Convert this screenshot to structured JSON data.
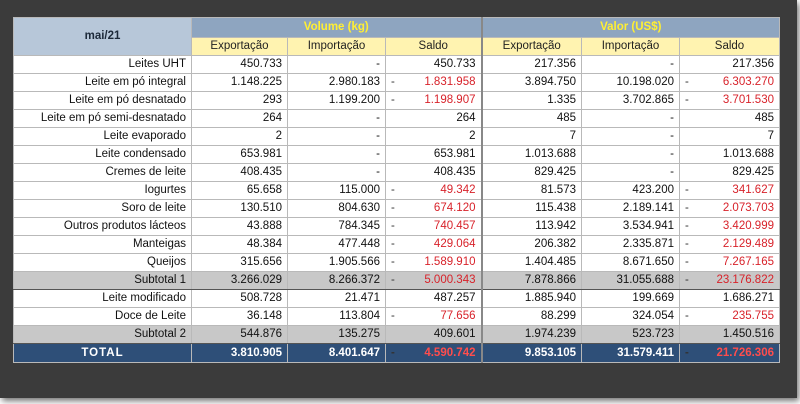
{
  "period": "mai/21",
  "groups": {
    "volume": "Volume (kg)",
    "valor": "Valor (US$)"
  },
  "subheaders": [
    "Exportação",
    "Importação",
    "Saldo",
    "Exportação",
    "Importação",
    "Saldo"
  ],
  "rows": [
    {
      "label": "Leites UHT",
      "vexp": "450.733",
      "vimp": "-",
      "vsal": "450.733",
      "vsal_neg": false,
      "$exp": "217.356",
      "$imp": "-",
      "$sal": "217.356",
      "$sal_neg": false
    },
    {
      "label": "Leite em pó integral",
      "vexp": "1.148.225",
      "vimp": "2.980.183",
      "vsal": "1.831.958",
      "vsal_neg": true,
      "$exp": "3.894.750",
      "$imp": "10.198.020",
      "$sal": "6.303.270",
      "$sal_neg": true
    },
    {
      "label": "Leite em pó desnatado",
      "vexp": "293",
      "vimp": "1.199.200",
      "vsal": "1.198.907",
      "vsal_neg": true,
      "$exp": "1.335",
      "$imp": "3.702.865",
      "$sal": "3.701.530",
      "$sal_neg": true
    },
    {
      "label": "Leite em pó semi-desnatado",
      "vexp": "264",
      "vimp": "-",
      "vsal": "264",
      "vsal_neg": false,
      "$exp": "485",
      "$imp": "-",
      "$sal": "485",
      "$sal_neg": false
    },
    {
      "label": "Leite evaporado",
      "vexp": "2",
      "vimp": "-",
      "vsal": "2",
      "vsal_neg": false,
      "$exp": "7",
      "$imp": "-",
      "$sal": "7",
      "$sal_neg": false
    },
    {
      "label": "Leite condensado",
      "vexp": "653.981",
      "vimp": "-",
      "vsal": "653.981",
      "vsal_neg": false,
      "$exp": "1.013.688",
      "$imp": "-",
      "$sal": "1.013.688",
      "$sal_neg": false
    },
    {
      "label": "Cremes de leite",
      "vexp": "408.435",
      "vimp": "-",
      "vsal": "408.435",
      "vsal_neg": false,
      "$exp": "829.425",
      "$imp": "-",
      "$sal": "829.425",
      "$sal_neg": false
    },
    {
      "label": "Iogurtes",
      "vexp": "65.658",
      "vimp": "115.000",
      "vsal": "49.342",
      "vsal_neg": true,
      "$exp": "81.573",
      "$imp": "423.200",
      "$sal": "341.627",
      "$sal_neg": true
    },
    {
      "label": "Soro de leite",
      "vexp": "130.510",
      "vimp": "804.630",
      "vsal": "674.120",
      "vsal_neg": true,
      "$exp": "115.438",
      "$imp": "2.189.141",
      "$sal": "2.073.703",
      "$sal_neg": true
    },
    {
      "label": "Outros produtos lácteos",
      "vexp": "43.888",
      "vimp": "784.345",
      "vsal": "740.457",
      "vsal_neg": true,
      "$exp": "113.942",
      "$imp": "3.534.941",
      "$sal": "3.420.999",
      "$sal_neg": true
    },
    {
      "label": "Manteigas",
      "vexp": "48.384",
      "vimp": "477.448",
      "vsal": "429.064",
      "vsal_neg": true,
      "$exp": "206.382",
      "$imp": "2.335.871",
      "$sal": "2.129.489",
      "$sal_neg": true
    },
    {
      "label": "Queijos",
      "vexp": "315.656",
      "vimp": "1.905.566",
      "vsal": "1.589.910",
      "vsal_neg": true,
      "$exp": "1.404.485",
      "$imp": "8.671.650",
      "$sal": "7.267.165",
      "$sal_neg": true
    }
  ],
  "subtotal1": {
    "label": "Subtotal 1",
    "vexp": "3.266.029",
    "vimp": "8.266.372",
    "vsal": "5.000.343",
    "vsal_neg": true,
    "$exp": "7.878.866",
    "$imp": "31.055.688",
    "$sal": "23.176.822",
    "$sal_neg": true
  },
  "rows2": [
    {
      "label": "Leite modificado",
      "vexp": "508.728",
      "vimp": "21.471",
      "vsal": "487.257",
      "vsal_neg": false,
      "$exp": "1.885.940",
      "$imp": "199.669",
      "$sal": "1.686.271",
      "$sal_neg": false
    },
    {
      "label": "Doce de Leite",
      "vexp": "36.148",
      "vimp": "113.804",
      "vsal": "77.656",
      "vsal_neg": true,
      "$exp": "88.299",
      "$imp": "324.054",
      "$sal": "235.755",
      "$sal_neg": true
    }
  ],
  "subtotal2": {
    "label": "Subtotal 2",
    "vexp": "544.876",
    "vimp": "135.275",
    "vsal": "409.601",
    "vsal_neg": false,
    "$exp": "1.974.239",
    "$imp": "523.723",
    "$sal": "1.450.516",
    "$sal_neg": false
  },
  "total": {
    "label": "TOTAL",
    "vexp": "3.810.905",
    "vimp": "8.401.647",
    "vsal": "4.590.742",
    "vsal_neg": true,
    "$exp": "9.853.105",
    "$imp": "31.579.411",
    "$sal": "21.726.306",
    "$sal_neg": true
  },
  "neg_marker": "-"
}
